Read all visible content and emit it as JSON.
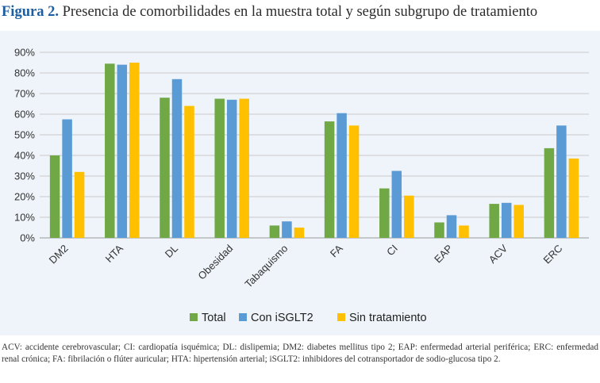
{
  "figure": {
    "label": "Figura 2.",
    "title": "Presencia de comorbilidades en la muestra total y según subgrupo de tratamiento"
  },
  "caption": "ACV: accidente cerebrovascular; CI: cardiopatía isquémica; DL: dislipemia; DM2: diabetes mellitus tipo 2; EAP: enfermedad arterial periférica; ERC: enfermedad renal crónica; FA: fibrilación o flúter auricular; HTA: hipertensión arterial; iSGLT2: inhibidores del cotransportador de sodio-glucosa tipo 2.",
  "chart_data": {
    "type": "bar",
    "title": "",
    "xlabel": "",
    "ylabel": "",
    "ylim": [
      0,
      90
    ],
    "yticks": [
      "0%",
      "10%",
      "20%",
      "30%",
      "40%",
      "50%",
      "60%",
      "70%",
      "80%",
      "90%"
    ],
    "grid": true,
    "legend_position": "bottom",
    "categories": [
      "DM2",
      "HTA",
      "DL",
      "Obesidad",
      "Tabaquismo",
      "FA",
      "CI",
      "EAP",
      "ACV",
      "ERC"
    ],
    "series": [
      {
        "name": "Total",
        "color": "#70a845",
        "values": [
          40,
          84.5,
          68,
          67.5,
          6,
          56.5,
          24,
          7.5,
          16.5,
          43.5
        ]
      },
      {
        "name": "Con iSGLT2",
        "color": "#5b9bd5",
        "values": [
          57.5,
          84,
          77,
          67,
          8,
          60.5,
          32.5,
          11,
          17,
          54.5
        ]
      },
      {
        "name": "Sin tratamiento",
        "color": "#ffc000",
        "values": [
          32,
          85,
          64,
          67.5,
          5,
          54.5,
          20.5,
          6,
          16,
          38.5
        ]
      }
    ]
  }
}
